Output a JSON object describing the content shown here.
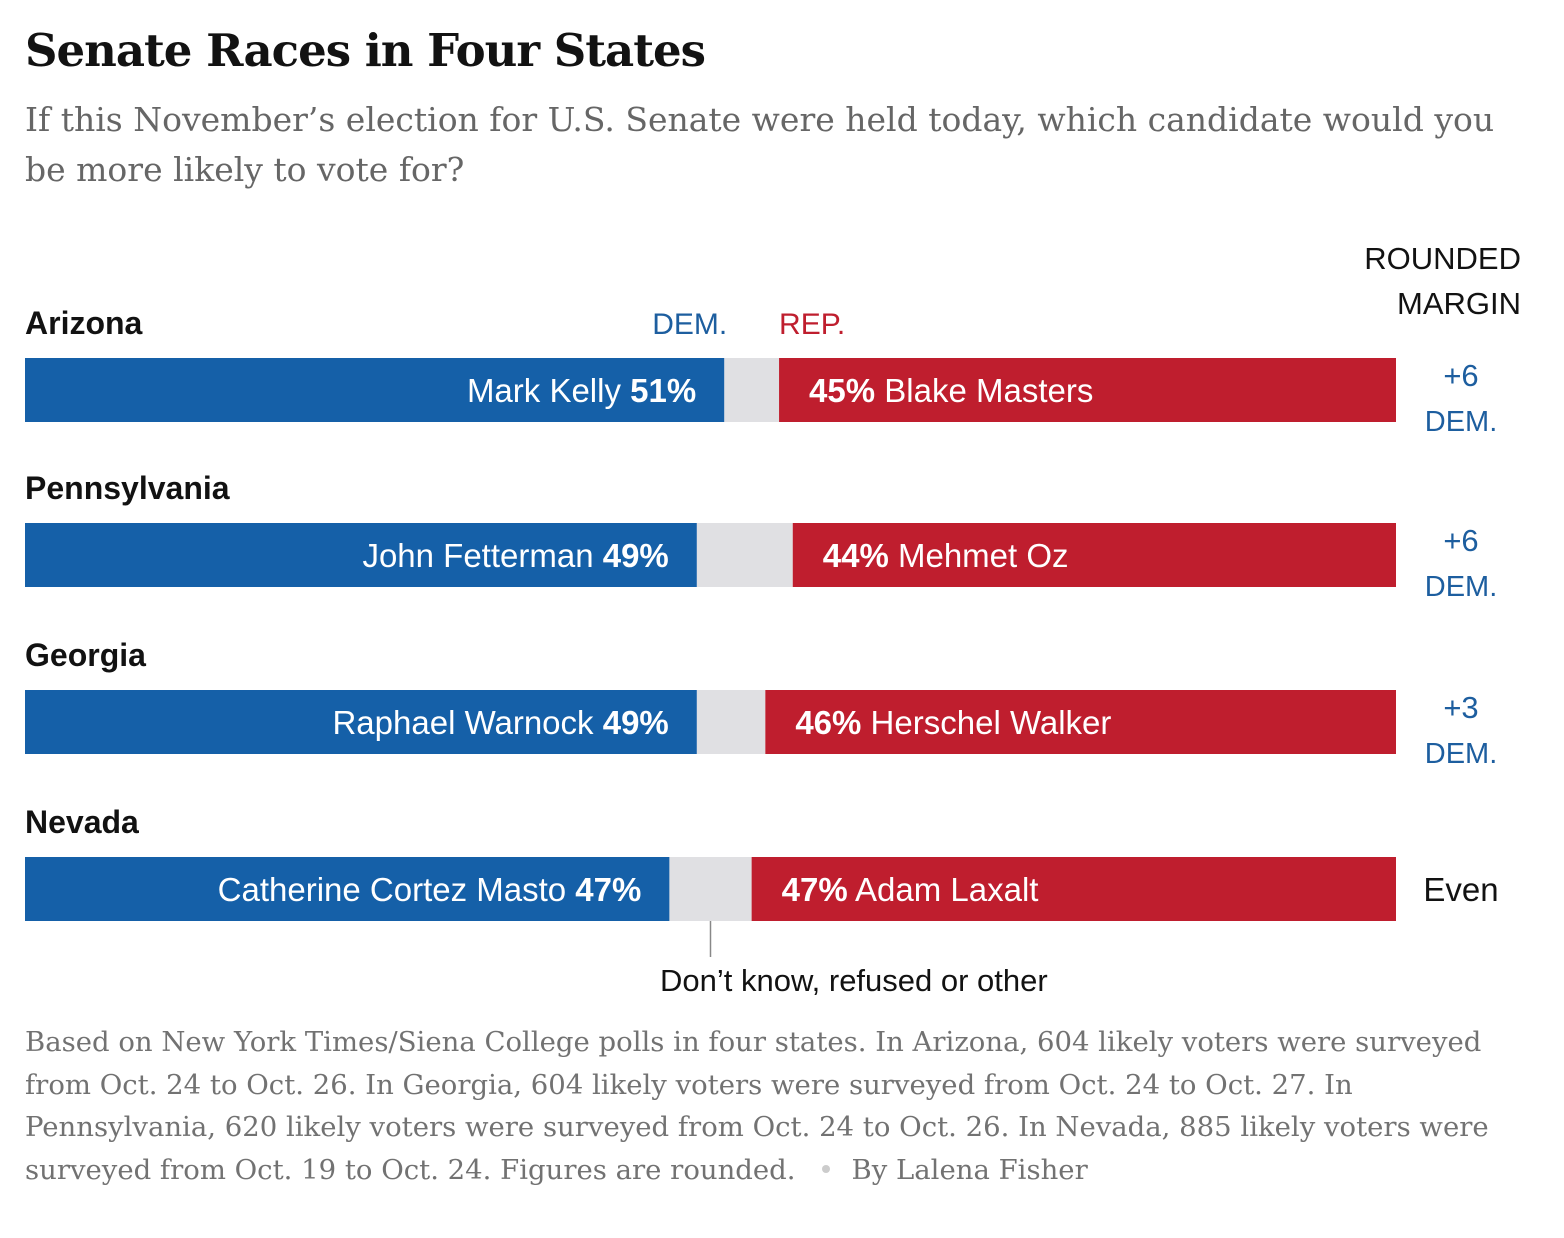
{
  "title": "Senate Races in Four States",
  "subtitle": "If this November’s election for U.S. Senate were held today, which candidate would you be more likely to vote for?",
  "margin_header": [
    "ROUNDED",
    "MARGIN"
  ],
  "footnote": "Based on New York Times/Siena College polls in four states. In Arizona, 604 likely voters were surveyed from Oct. 24 to Oct. 26. In Georgia, 604 likely voters were surveyed from Oct. 24 to Oct. 27. In Pennsylvania, 620 likely voters were surveyed from Oct. 24 to Oct. 26. In Nevada, 885 likely voters were surveyed from Oct. 19 to Oct. 24. Figures are rounded.",
  "byline": "By Lalena Fisher",
  "colors": {
    "dem": "#1560a8",
    "rep": "#bf1e2e",
    "other": "#e0e0e3",
    "dem_text": "#1d5e9f",
    "rep_text": "#bf1e2e"
  },
  "chart_data": {
    "type": "bar",
    "orientation": "horizontal-stacked",
    "title": "Senate Races in Four States",
    "legend": {
      "dem": "DEM.",
      "rep": "REP.",
      "other": "Don’t know, refused or other"
    },
    "xlim": [
      0,
      100
    ],
    "races": [
      {
        "state": "Arizona",
        "dem_candidate": "Mark Kelly",
        "dem_pct": 51,
        "rep_candidate": "Blake Masters",
        "rep_pct": 45,
        "margin_value": "+6",
        "margin_party": "DEM."
      },
      {
        "state": "Pennsylvania",
        "dem_candidate": "John Fetterman",
        "dem_pct": 49,
        "rep_candidate": "Mehmet Oz",
        "rep_pct": 44,
        "margin_value": "+6",
        "margin_party": "DEM."
      },
      {
        "state": "Georgia",
        "dem_candidate": "Raphael Warnock",
        "dem_pct": 49,
        "rep_candidate": "Herschel Walker",
        "rep_pct": 46,
        "margin_value": "+3",
        "margin_party": "DEM."
      },
      {
        "state": "Nevada",
        "dem_candidate": "Catherine Cortez Masto",
        "dem_pct": 47,
        "rep_candidate": "Adam Laxalt",
        "rep_pct": 47,
        "margin_value": "Even",
        "margin_party": ""
      }
    ]
  }
}
